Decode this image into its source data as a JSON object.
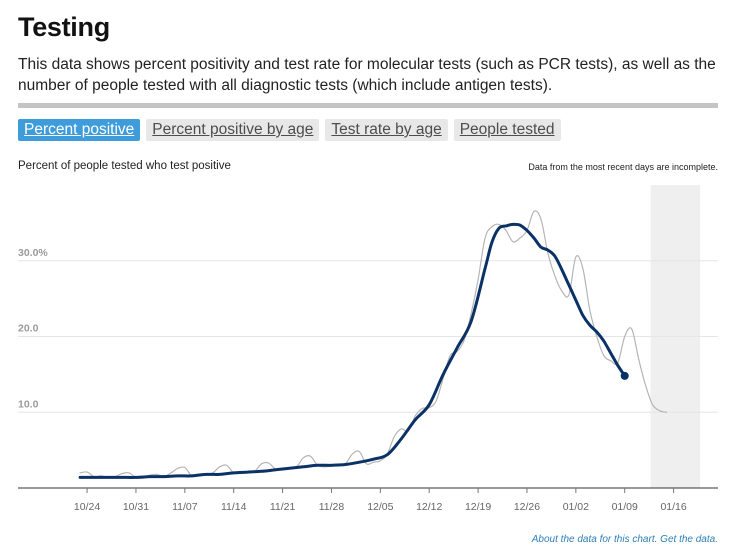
{
  "page": {
    "title": "Testing",
    "description": "This data shows percent positivity and test rate for molecular tests (such as PCR tests), as well as the number of people tested with all diagnostic tests (which include antigen tests)."
  },
  "tabs": [
    {
      "label": "Percent positive",
      "active": true
    },
    {
      "label": "Percent positive by age",
      "active": false
    },
    {
      "label": "Test rate by age",
      "active": false
    },
    {
      "label": "People tested",
      "active": false
    }
  ],
  "chart_subtitle": "Percent of people tested who test positive",
  "chart_note": "Data from the most recent days are incomplete.",
  "footer": {
    "about": "About the data for this chart.",
    "get": "Get the data."
  },
  "colors": {
    "accent": "#3d9cd9",
    "average_line": "#0b3266",
    "daily_line": "#b5b5b5",
    "incomplete_band": "#efefef",
    "gridline": "#e6e6e6"
  },
  "chart_data": {
    "type": "line",
    "title": "Percent of people tested who test positive",
    "xlabel": "",
    "ylabel": "",
    "ylim": [
      0,
      40
    ],
    "y_ticks": [
      {
        "value": 10,
        "label": "10.0"
      },
      {
        "value": 20,
        "label": "20.0"
      },
      {
        "value": 30,
        "label": "30.0%"
      }
    ],
    "x_ticks": [
      {
        "day": 1,
        "label": "10/24"
      },
      {
        "day": 8,
        "label": "10/31"
      },
      {
        "day": 15,
        "label": "11/07"
      },
      {
        "day": 22,
        "label": "11/14"
      },
      {
        "day": 29,
        "label": "11/21"
      },
      {
        "day": 36,
        "label": "11/28"
      },
      {
        "day": 43,
        "label": "12/05"
      },
      {
        "day": 50,
        "label": "12/12"
      },
      {
        "day": 57,
        "label": "12/19"
      },
      {
        "day": 64,
        "label": "12/26"
      },
      {
        "day": 71,
        "label": "01/02"
      },
      {
        "day": 78,
        "label": "01/09"
      },
      {
        "day": 85,
        "label": "01/16"
      }
    ],
    "x_range": [
      -0.3,
      90.5
    ],
    "incomplete_range": [
      81.7,
      88.8
    ],
    "series": [
      {
        "name": "Daily",
        "style": "thin-gray",
        "points": [
          [
            0,
            2.0
          ],
          [
            1,
            2.1
          ],
          [
            2,
            1.5
          ],
          [
            3,
            1.6
          ],
          [
            4,
            1.4
          ],
          [
            5,
            1.5
          ],
          [
            6,
            1.9
          ],
          [
            7,
            2.0
          ],
          [
            8,
            1.4
          ],
          [
            9,
            1.3
          ],
          [
            10,
            1.7
          ],
          [
            11,
            1.8
          ],
          [
            12,
            1.5
          ],
          [
            13,
            2.0
          ],
          [
            14,
            2.6
          ],
          [
            15,
            2.7
          ],
          [
            16,
            1.6
          ],
          [
            17,
            1.7
          ],
          [
            18,
            1.8
          ],
          [
            19,
            2.0
          ],
          [
            20,
            2.8
          ],
          [
            21,
            3.0
          ],
          [
            22,
            2.0
          ],
          [
            23,
            2.0
          ],
          [
            24,
            2.0
          ],
          [
            25,
            2.2
          ],
          [
            26,
            3.2
          ],
          [
            27,
            3.3
          ],
          [
            28,
            2.5
          ],
          [
            29,
            2.4
          ],
          [
            30,
            2.5
          ],
          [
            31,
            2.8
          ],
          [
            32,
            4.0
          ],
          [
            33,
            4.2
          ],
          [
            34,
            3.0
          ],
          [
            35,
            2.8
          ],
          [
            36,
            2.9
          ],
          [
            37,
            3.0
          ],
          [
            38,
            3.2
          ],
          [
            39,
            4.5
          ],
          [
            40,
            4.8
          ],
          [
            41,
            3.2
          ],
          [
            42,
            3.4
          ],
          [
            43,
            3.6
          ],
          [
            44,
            4.5
          ],
          [
            45,
            6.8
          ],
          [
            46,
            7.8
          ],
          [
            47,
            7.5
          ],
          [
            48,
            9.5
          ],
          [
            49,
            10.5
          ],
          [
            50,
            10.6
          ],
          [
            51,
            11.5
          ],
          [
            52,
            14.5
          ],
          [
            53,
            17.5
          ],
          [
            54,
            18.0
          ],
          [
            55,
            19.5
          ],
          [
            56,
            23.0
          ],
          [
            57,
            27.5
          ],
          [
            58,
            33.0
          ],
          [
            59,
            34.5
          ],
          [
            60,
            34.8
          ],
          [
            61,
            34.0
          ],
          [
            62,
            32.5
          ],
          [
            63,
            33.0
          ],
          [
            64,
            34.0
          ],
          [
            65,
            36.5
          ],
          [
            66,
            35.5
          ],
          [
            67,
            31.0
          ],
          [
            68,
            28.0
          ],
          [
            69,
            26.0
          ],
          [
            70,
            25.5
          ],
          [
            71,
            30.5
          ],
          [
            72,
            29.0
          ],
          [
            73,
            23.5
          ],
          [
            74,
            20.0
          ],
          [
            75,
            17.5
          ],
          [
            76,
            16.8
          ],
          [
            77,
            16.5
          ],
          [
            78,
            20.0
          ],
          [
            79,
            21.0
          ],
          [
            80,
            17.0
          ],
          [
            81,
            13.5
          ],
          [
            82,
            11.0
          ],
          [
            83,
            10.2
          ],
          [
            84,
            10.0
          ]
        ]
      },
      {
        "name": "7-day average",
        "style": "thick-navy",
        "points": [
          [
            0,
            1.4
          ],
          [
            2,
            1.4
          ],
          [
            4,
            1.4
          ],
          [
            6,
            1.4
          ],
          [
            8,
            1.4
          ],
          [
            10,
            1.5
          ],
          [
            12,
            1.5
          ],
          [
            14,
            1.6
          ],
          [
            16,
            1.6
          ],
          [
            18,
            1.8
          ],
          [
            20,
            1.8
          ],
          [
            22,
            2.0
          ],
          [
            24,
            2.1
          ],
          [
            26,
            2.2
          ],
          [
            28,
            2.4
          ],
          [
            30,
            2.6
          ],
          [
            32,
            2.8
          ],
          [
            34,
            3.0
          ],
          [
            36,
            3.0
          ],
          [
            38,
            3.1
          ],
          [
            40,
            3.4
          ],
          [
            42,
            3.8
          ],
          [
            44,
            4.4
          ],
          [
            46,
            6.5
          ],
          [
            48,
            9.0
          ],
          [
            50,
            11.0
          ],
          [
            52,
            15.0
          ],
          [
            54,
            18.5
          ],
          [
            56,
            22.0
          ],
          [
            58,
            29.0
          ],
          [
            59,
            32.5
          ],
          [
            60,
            34.3
          ],
          [
            61,
            34.6
          ],
          [
            62,
            34.8
          ],
          [
            63,
            34.7
          ],
          [
            64,
            34.0
          ],
          [
            65,
            33.0
          ],
          [
            66,
            31.8
          ],
          [
            67,
            31.4
          ],
          [
            68,
            30.6
          ],
          [
            69,
            28.8
          ],
          [
            70,
            26.8
          ],
          [
            71,
            24.8
          ],
          [
            72,
            22.8
          ],
          [
            73,
            21.5
          ],
          [
            74,
            20.6
          ],
          [
            75,
            19.4
          ],
          [
            76,
            17.8
          ],
          [
            77,
            16.2
          ],
          [
            78,
            14.8
          ]
        ]
      }
    ]
  }
}
